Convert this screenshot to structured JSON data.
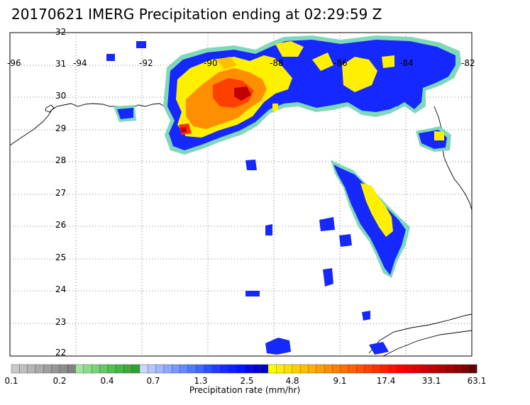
{
  "title": "20170621 IMERG Precipitation ending at 02:29:59 Z",
  "map": {
    "lon_labels": [
      "-96",
      "-94",
      "-92",
      "-90",
      "-88",
      "-86",
      "-84",
      "-82"
    ],
    "lat_labels": [
      "32",
      "31",
      "30",
      "29",
      "28",
      "27",
      "26",
      "25",
      "24",
      "23",
      "22"
    ]
  },
  "colorbar": {
    "title": "Precipitation rate (mm/hr)",
    "tick_labels": [
      "0.1",
      "0.2",
      "0.4",
      "0.7",
      "1.3",
      "2.5",
      "4.8",
      "9.1",
      "17.4",
      "33.1",
      "63.1"
    ],
    "colors": {
      "grays": [
        "#c8c8c8",
        "#bebebe",
        "#b4b4b4",
        "#aaaaaa",
        "#a0a0a0",
        "#969696",
        "#8c8c8c",
        "#828282"
      ],
      "greens": [
        "#a0e6a0",
        "#8cdc8c",
        "#78d278",
        "#64c864",
        "#50be50",
        "#46b446",
        "#3caa3c",
        "#32a032"
      ],
      "light_blues": [
        "#c8d8ff",
        "#b4c8ff",
        "#a0b8ff",
        "#8ca8ff",
        "#7898ff",
        "#6488ff",
        "#5078ff",
        "#3c68ff"
      ],
      "blues": [
        "#2850ff",
        "#1e3cff",
        "#1428ff",
        "#0a1eff",
        "#0014ff",
        "#000ae6",
        "#0000d2",
        "#0000be"
      ],
      "yellows": [
        "#ffff00",
        "#ffef00",
        "#ffdf00",
        "#ffcf00",
        "#ffbf00",
        "#ffaf00",
        "#ff9f00",
        "#ff8f00"
      ],
      "oranges": [
        "#ff7f00",
        "#ff6f00",
        "#ff5f00",
        "#ff4f00",
        "#ff3f00",
        "#ff2f00",
        "#ff1f00",
        "#ff0f00"
      ],
      "reds": [
        "#ff0000",
        "#f00000",
        "#e00000",
        "#d00000",
        "#c00000",
        "#b00000",
        "#a00000",
        "#900000"
      ],
      "darks": [
        "#800000",
        "#600000"
      ]
    }
  }
}
